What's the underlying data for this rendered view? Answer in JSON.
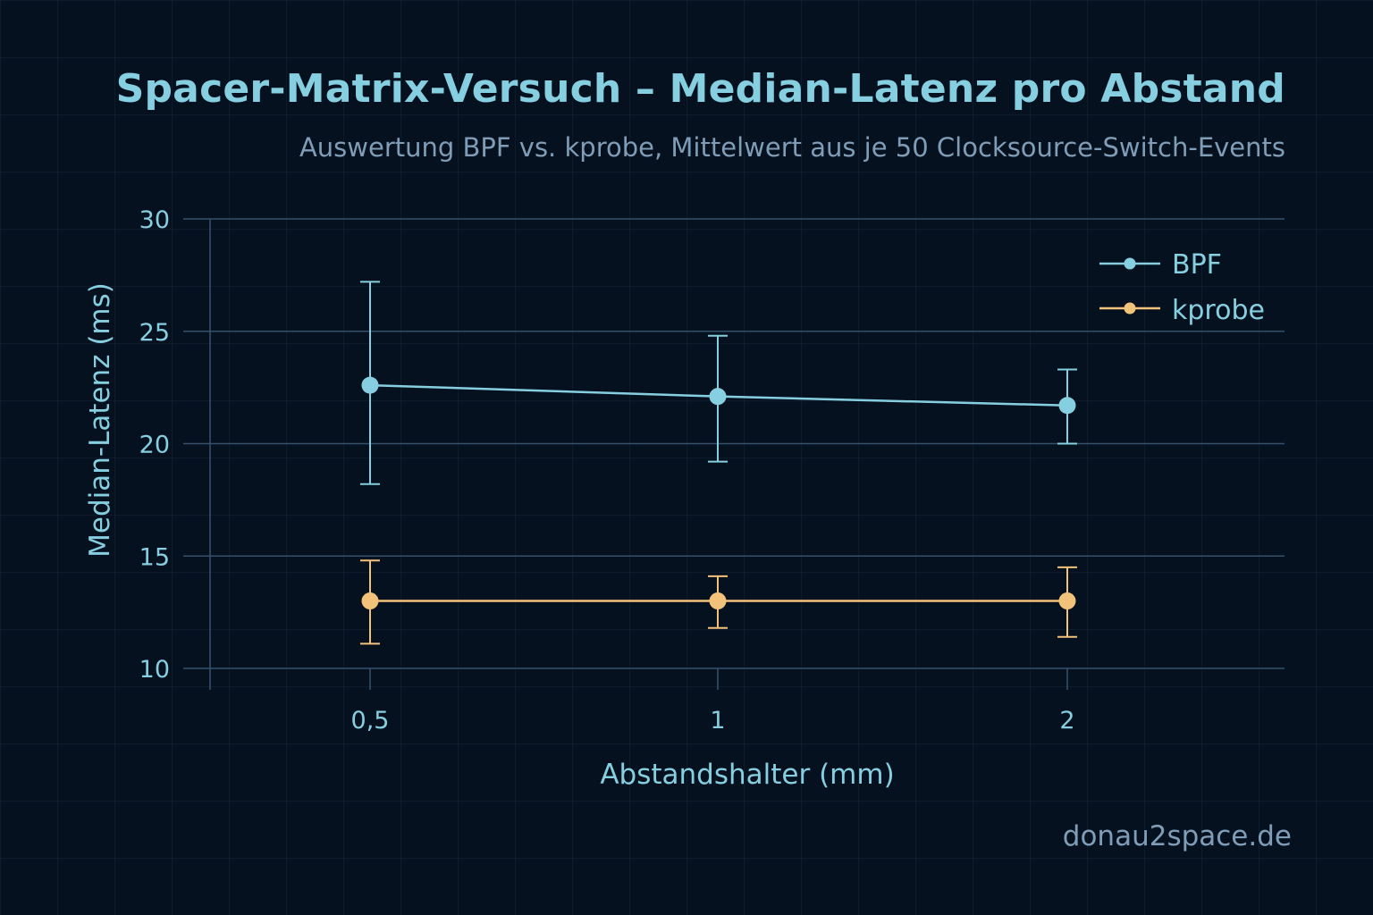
{
  "title": "Spacer-Matrix-Versuch – Median-Latenz pro Abstand",
  "subtitle": "Auswertung BPF vs. kprobe, Mittelwert aus je 50 Clocksource-Switch-Events",
  "watermark": "donau2space.de",
  "colors": {
    "background": "#061120",
    "bpf": "#86cfe0",
    "kprobe": "#f2c27a",
    "axis": "#34506b"
  },
  "chart_data": {
    "type": "line",
    "title": "Spacer-Matrix-Versuch – Median-Latenz pro Abstand",
    "subtitle": "Auswertung BPF vs. kprobe, Mittelwert aus je 50 Clocksource-Switch-Events",
    "xlabel": "Abstandshalter (mm)",
    "ylabel": "Median-Latenz (ms)",
    "categories": [
      "0,5",
      "1",
      "2"
    ],
    "ylim": [
      10,
      30
    ],
    "yticks": [
      "10",
      "15",
      "20",
      "25",
      "30"
    ],
    "grid": true,
    "legend_position": "top-right",
    "series": [
      {
        "name": "BPF",
        "color": "#86cfe0",
        "values": [
          22.6,
          22.1,
          21.7
        ],
        "err_low": [
          18.2,
          19.2,
          20.0
        ],
        "err_high": [
          27.2,
          24.8,
          23.3
        ]
      },
      {
        "name": "kprobe",
        "color": "#f2c27a",
        "values": [
          13.0,
          13.0,
          13.0
        ],
        "err_low": [
          11.1,
          11.8,
          11.4
        ],
        "err_high": [
          14.8,
          14.1,
          14.5
        ]
      }
    ]
  }
}
